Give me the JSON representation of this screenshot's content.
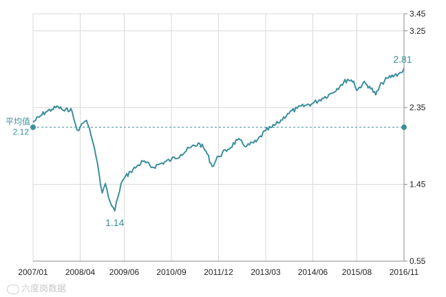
{
  "chart_data": {
    "type": "line",
    "x_ticks": [
      "2007/01",
      "2008/04",
      "2009/06",
      "2010/09",
      "2011/12",
      "2013/03",
      "2014/06",
      "2015/08",
      "2016/11"
    ],
    "y_ticks": [
      "0.55",
      "1.45",
      "2.35",
      "3.25",
      "3.45"
    ],
    "ylim": [
      0.55,
      3.45
    ],
    "grid": true,
    "average": {
      "label": "平均值",
      "value": "2.12"
    },
    "annotations": {
      "min": "1.14",
      "last": "2.81"
    },
    "series": [
      {
        "color": "#3a8e9c",
        "points": [
          [
            "2007/01",
            2.18
          ],
          [
            "2007/03",
            2.24
          ],
          [
            "2007/05",
            2.3
          ],
          [
            "2007/07",
            2.33
          ],
          [
            "2007/09",
            2.36
          ],
          [
            "2007/11",
            2.31
          ],
          [
            "2008/01",
            2.34
          ],
          [
            "2008/02",
            2.21
          ],
          [
            "2008/03",
            2.09
          ],
          [
            "2008/04",
            2.12
          ],
          [
            "2008/05",
            2.17
          ],
          [
            "2008/06",
            2.2
          ],
          [
            "2008/07",
            2.1
          ],
          [
            "2008/08",
            1.95
          ],
          [
            "2008/09",
            1.78
          ],
          [
            "2008/10",
            1.58
          ],
          [
            "2008/11",
            1.35
          ],
          [
            "2008/12",
            1.46
          ],
          [
            "2009/01",
            1.3
          ],
          [
            "2009/02",
            1.2
          ],
          [
            "2009/03",
            1.14
          ],
          [
            "2009/04",
            1.3
          ],
          [
            "2009/05",
            1.46
          ],
          [
            "2009/06",
            1.52
          ],
          [
            "2009/08",
            1.6
          ],
          [
            "2009/10",
            1.66
          ],
          [
            "2009/12",
            1.72
          ],
          [
            "2010/03",
            1.65
          ],
          [
            "2010/06",
            1.7
          ],
          [
            "2010/09",
            1.74
          ],
          [
            "2010/12",
            1.8
          ],
          [
            "2011/03",
            1.88
          ],
          [
            "2011/06",
            1.93
          ],
          [
            "2011/08",
            1.84
          ],
          [
            "2011/10",
            1.66
          ],
          [
            "2011/12",
            1.78
          ],
          [
            "2012/03",
            1.86
          ],
          [
            "2012/06",
            1.97
          ],
          [
            "2012/09",
            1.9
          ],
          [
            "2012/12",
            1.95
          ],
          [
            "2013/03",
            2.08
          ],
          [
            "2013/05",
            2.12
          ],
          [
            "2013/07",
            2.17
          ],
          [
            "2013/10",
            2.28
          ],
          [
            "2014/01",
            2.34
          ],
          [
            "2014/04",
            2.38
          ],
          [
            "2014/06",
            2.4
          ],
          [
            "2014/09",
            2.46
          ],
          [
            "2014/12",
            2.52
          ],
          [
            "2015/03",
            2.62
          ],
          [
            "2015/05",
            2.68
          ],
          [
            "2015/07",
            2.66
          ],
          [
            "2015/08",
            2.55
          ],
          [
            "2015/10",
            2.64
          ],
          [
            "2015/12",
            2.6
          ],
          [
            "2016/02",
            2.5
          ],
          [
            "2016/04",
            2.64
          ],
          [
            "2016/06",
            2.7
          ],
          [
            "2016/08",
            2.73
          ],
          [
            "2016/10",
            2.76
          ],
          [
            "2016/11",
            2.81
          ]
        ]
      }
    ]
  },
  "watermark": "六度岗数据"
}
